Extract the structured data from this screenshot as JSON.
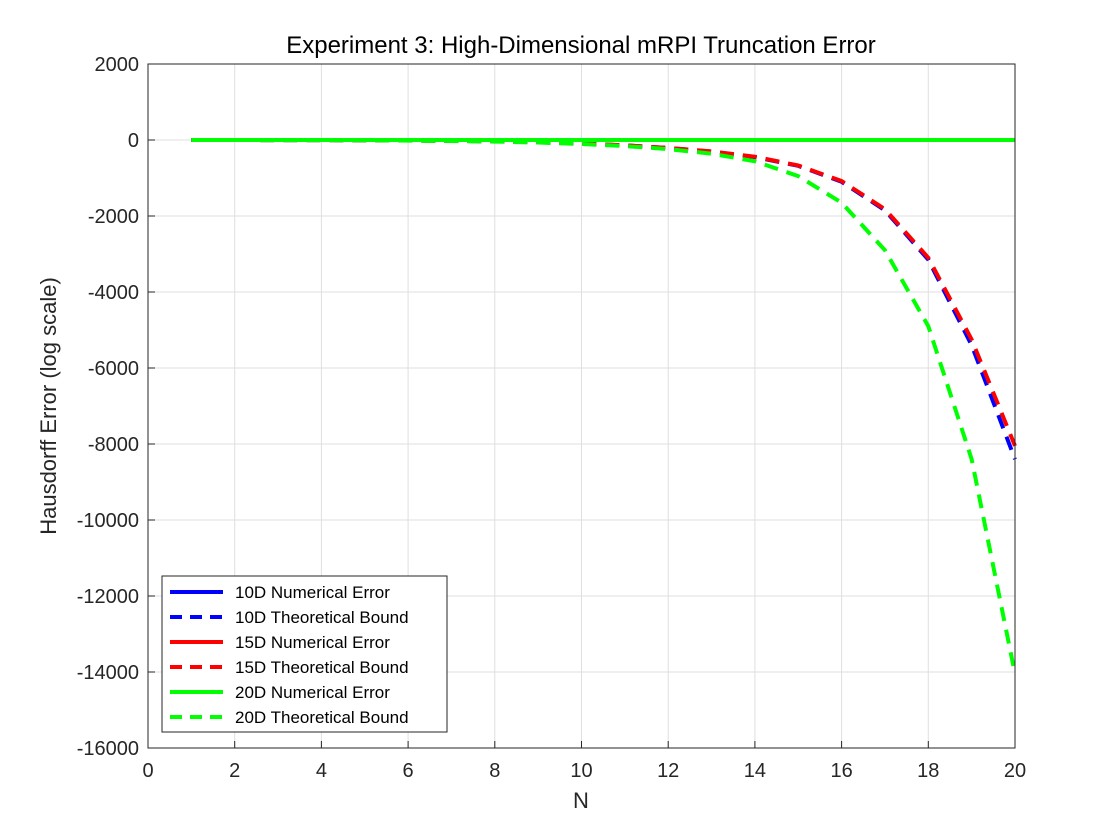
{
  "chart_data": {
    "type": "line",
    "title": "Experiment 3: High-Dimensional mRPI Truncation Error",
    "xlabel": "N",
    "ylabel": "Hausdorff Error (log scale)",
    "xlim": [
      0,
      20
    ],
    "ylim": [
      -16000,
      2000
    ],
    "xticks": [
      0,
      2,
      4,
      6,
      8,
      10,
      12,
      14,
      16,
      18,
      20
    ],
    "yticks": [
      2000,
      0,
      -2000,
      -4000,
      -6000,
      -8000,
      -10000,
      -12000,
      -14000,
      -16000
    ],
    "grid": true,
    "legend_position": "bottom-left",
    "x": [
      1,
      2,
      3,
      4,
      5,
      6,
      7,
      8,
      9,
      10,
      11,
      12,
      13,
      14,
      15,
      16,
      17,
      18,
      19,
      20
    ],
    "series": [
      {
        "name": "10D Numerical Error",
        "color": "#0000ff",
        "style": "solid",
        "values": [
          0,
          0,
          0,
          0,
          0,
          0,
          0,
          0,
          0,
          0,
          0,
          0,
          0,
          0,
          0,
          0,
          0,
          0,
          0,
          0
        ]
      },
      {
        "name": "10D Theoretical Bound",
        "color": "#0000ff",
        "style": "dashed",
        "values": [
          -0.5,
          -1,
          -2,
          -4,
          -7,
          -13,
          -22,
          -36,
          -58,
          -92,
          -140,
          -210,
          -305,
          -450,
          -680,
          -1100,
          -1850,
          -3150,
          -5400,
          -8400
        ]
      },
      {
        "name": "15D Numerical Error",
        "color": "#ff0000",
        "style": "solid",
        "values": [
          0,
          0,
          0,
          0,
          0,
          0,
          0,
          0,
          0,
          0,
          0,
          0,
          0,
          0,
          0,
          0,
          0,
          0,
          0,
          0
        ]
      },
      {
        "name": "15D Theoretical Bound",
        "color": "#ff0000",
        "style": "dashed",
        "values": [
          -0.5,
          -1,
          -2,
          -4,
          -7,
          -13,
          -22,
          -36,
          -58,
          -92,
          -140,
          -210,
          -300,
          -440,
          -670,
          -1080,
          -1820,
          -3100,
          -5250,
          -8050
        ]
      },
      {
        "name": "20D Numerical Error",
        "color": "#00ff00",
        "style": "solid",
        "values": [
          0,
          0,
          0,
          0,
          0,
          0,
          0,
          0,
          0,
          0,
          0,
          0,
          0,
          0,
          0,
          0,
          0,
          0,
          0,
          0
        ]
      },
      {
        "name": "20D Theoretical Bound",
        "color": "#00ff00",
        "style": "dashed",
        "values": [
          -0.5,
          -1,
          -2,
          -4,
          -8,
          -15,
          -26,
          -42,
          -67,
          -105,
          -160,
          -240,
          -360,
          -560,
          -950,
          -1650,
          -2900,
          -4900,
          -8400,
          -14050
        ]
      }
    ]
  }
}
